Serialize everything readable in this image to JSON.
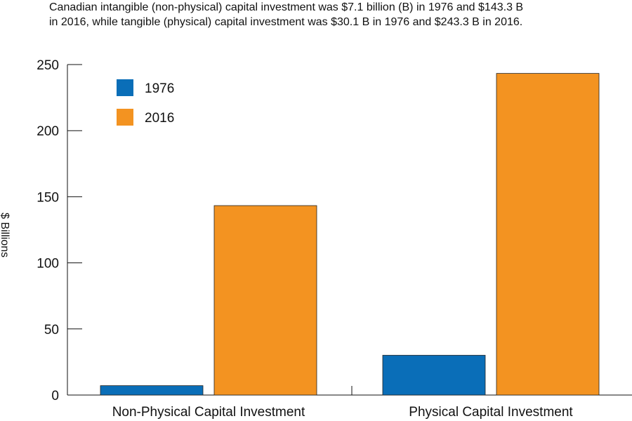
{
  "title_lines": [
    "Canadian intangible (non-physical) capital investment was $7.1 billion (B) in 1976 and $143.3 B",
    "in 2016, while tangible (physical) capital investment was $30.1 B in 1976 and $243.3 B in 2016."
  ],
  "chart_data": {
    "type": "bar",
    "title": "Canadian intangible (non-physical) capital investment was $7.1 billion (B) in 1976 and $143.3 B in 2016, while tangible (physical) capital investment was $30.1 B in 1976 and $243.3 B in 2016.",
    "xlabel": "",
    "ylabel": "$ Billions",
    "ylim": [
      0,
      250
    ],
    "yticks": [
      0,
      50,
      100,
      150,
      200,
      250
    ],
    "categories": [
      "Non-Physical Capital Investment",
      "Physical Capital Investment"
    ],
    "series": [
      {
        "name": "1976",
        "values": [
          7.1,
          30.1
        ],
        "color": "#0a6eb8"
      },
      {
        "name": "2016",
        "values": [
          143.3,
          243.3
        ],
        "color": "#f39321"
      }
    ],
    "legend_position": "top-left",
    "grid": false
  }
}
